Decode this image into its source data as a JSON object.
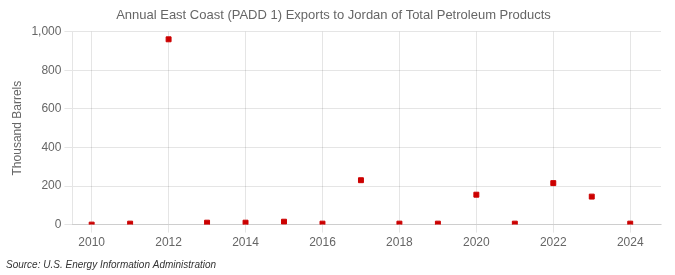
{
  "chart_data": {
    "type": "scatter",
    "title": "Annual East Coast (PADD 1) Exports to Jordan of Total Petroleum Products",
    "ylabel": "Thousand Barrels",
    "annotation": "Source: U.S. Energy Information Administration",
    "x": [
      2010,
      2011,
      2012,
      2013,
      2014,
      2015,
      2016,
      2017,
      2018,
      2019,
      2020,
      2021,
      2022,
      2023,
      2024
    ],
    "values": [
      0,
      5,
      960,
      10,
      10,
      15,
      5,
      230,
      5,
      5,
      155,
      5,
      215,
      145,
      5
    ],
    "color": "#cc0000",
    "marker": "square",
    "xlim": [
      2009.5,
      2024.8
    ],
    "xticks": [
      2010,
      2012,
      2014,
      2016,
      2018,
      2020,
      2022,
      2024
    ],
    "ylim": [
      0,
      1000
    ],
    "yticks": [
      0,
      200,
      400,
      600,
      800,
      {
        "value": 1000,
        "label": "1,000"
      }
    ],
    "grid": true
  }
}
